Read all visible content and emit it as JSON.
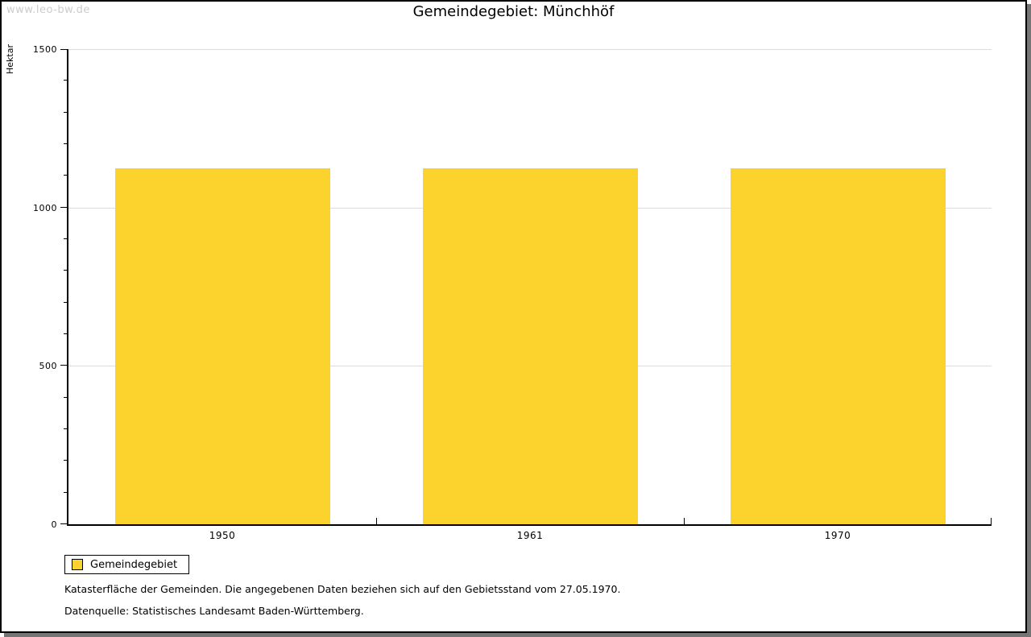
{
  "watermark": "www.leo-bw.de",
  "title": "Gemeindegebiet: Münchhöf",
  "chart_data": {
    "type": "bar",
    "title": "Gemeindegebiet: Münchhöf",
    "categories": [
      "1950",
      "1961",
      "1970"
    ],
    "series": [
      {
        "name": "Gemeindegebiet",
        "values": [
          1123,
          1123,
          1123
        ],
        "color": "#FCD32D"
      }
    ],
    "xlabel": "",
    "ylabel": "Hektar",
    "ylim": [
      0,
      1500
    ],
    "ytick_major": 500,
    "ytick_minor": 100,
    "grid": "horizontal-major",
    "legend_position": "bottom-left"
  },
  "legend": {
    "items": [
      {
        "label": "Gemeindegebiet",
        "color": "#FCD32D"
      }
    ]
  },
  "footnotes": [
    "Katasterfläche der Gemeinden. Die angegebenen Daten beziehen sich auf den Gebietsstand vom 27.05.1970.",
    "Datenquelle: Statistisches Landesamt Baden-Württemberg."
  ],
  "colors": {
    "bar": "#FCD32D",
    "gridline": "#DCDCDC",
    "axis": "#000000",
    "watermark": "#CCCCCC",
    "shadow": "#757575",
    "background": "#FFFFFF"
  }
}
